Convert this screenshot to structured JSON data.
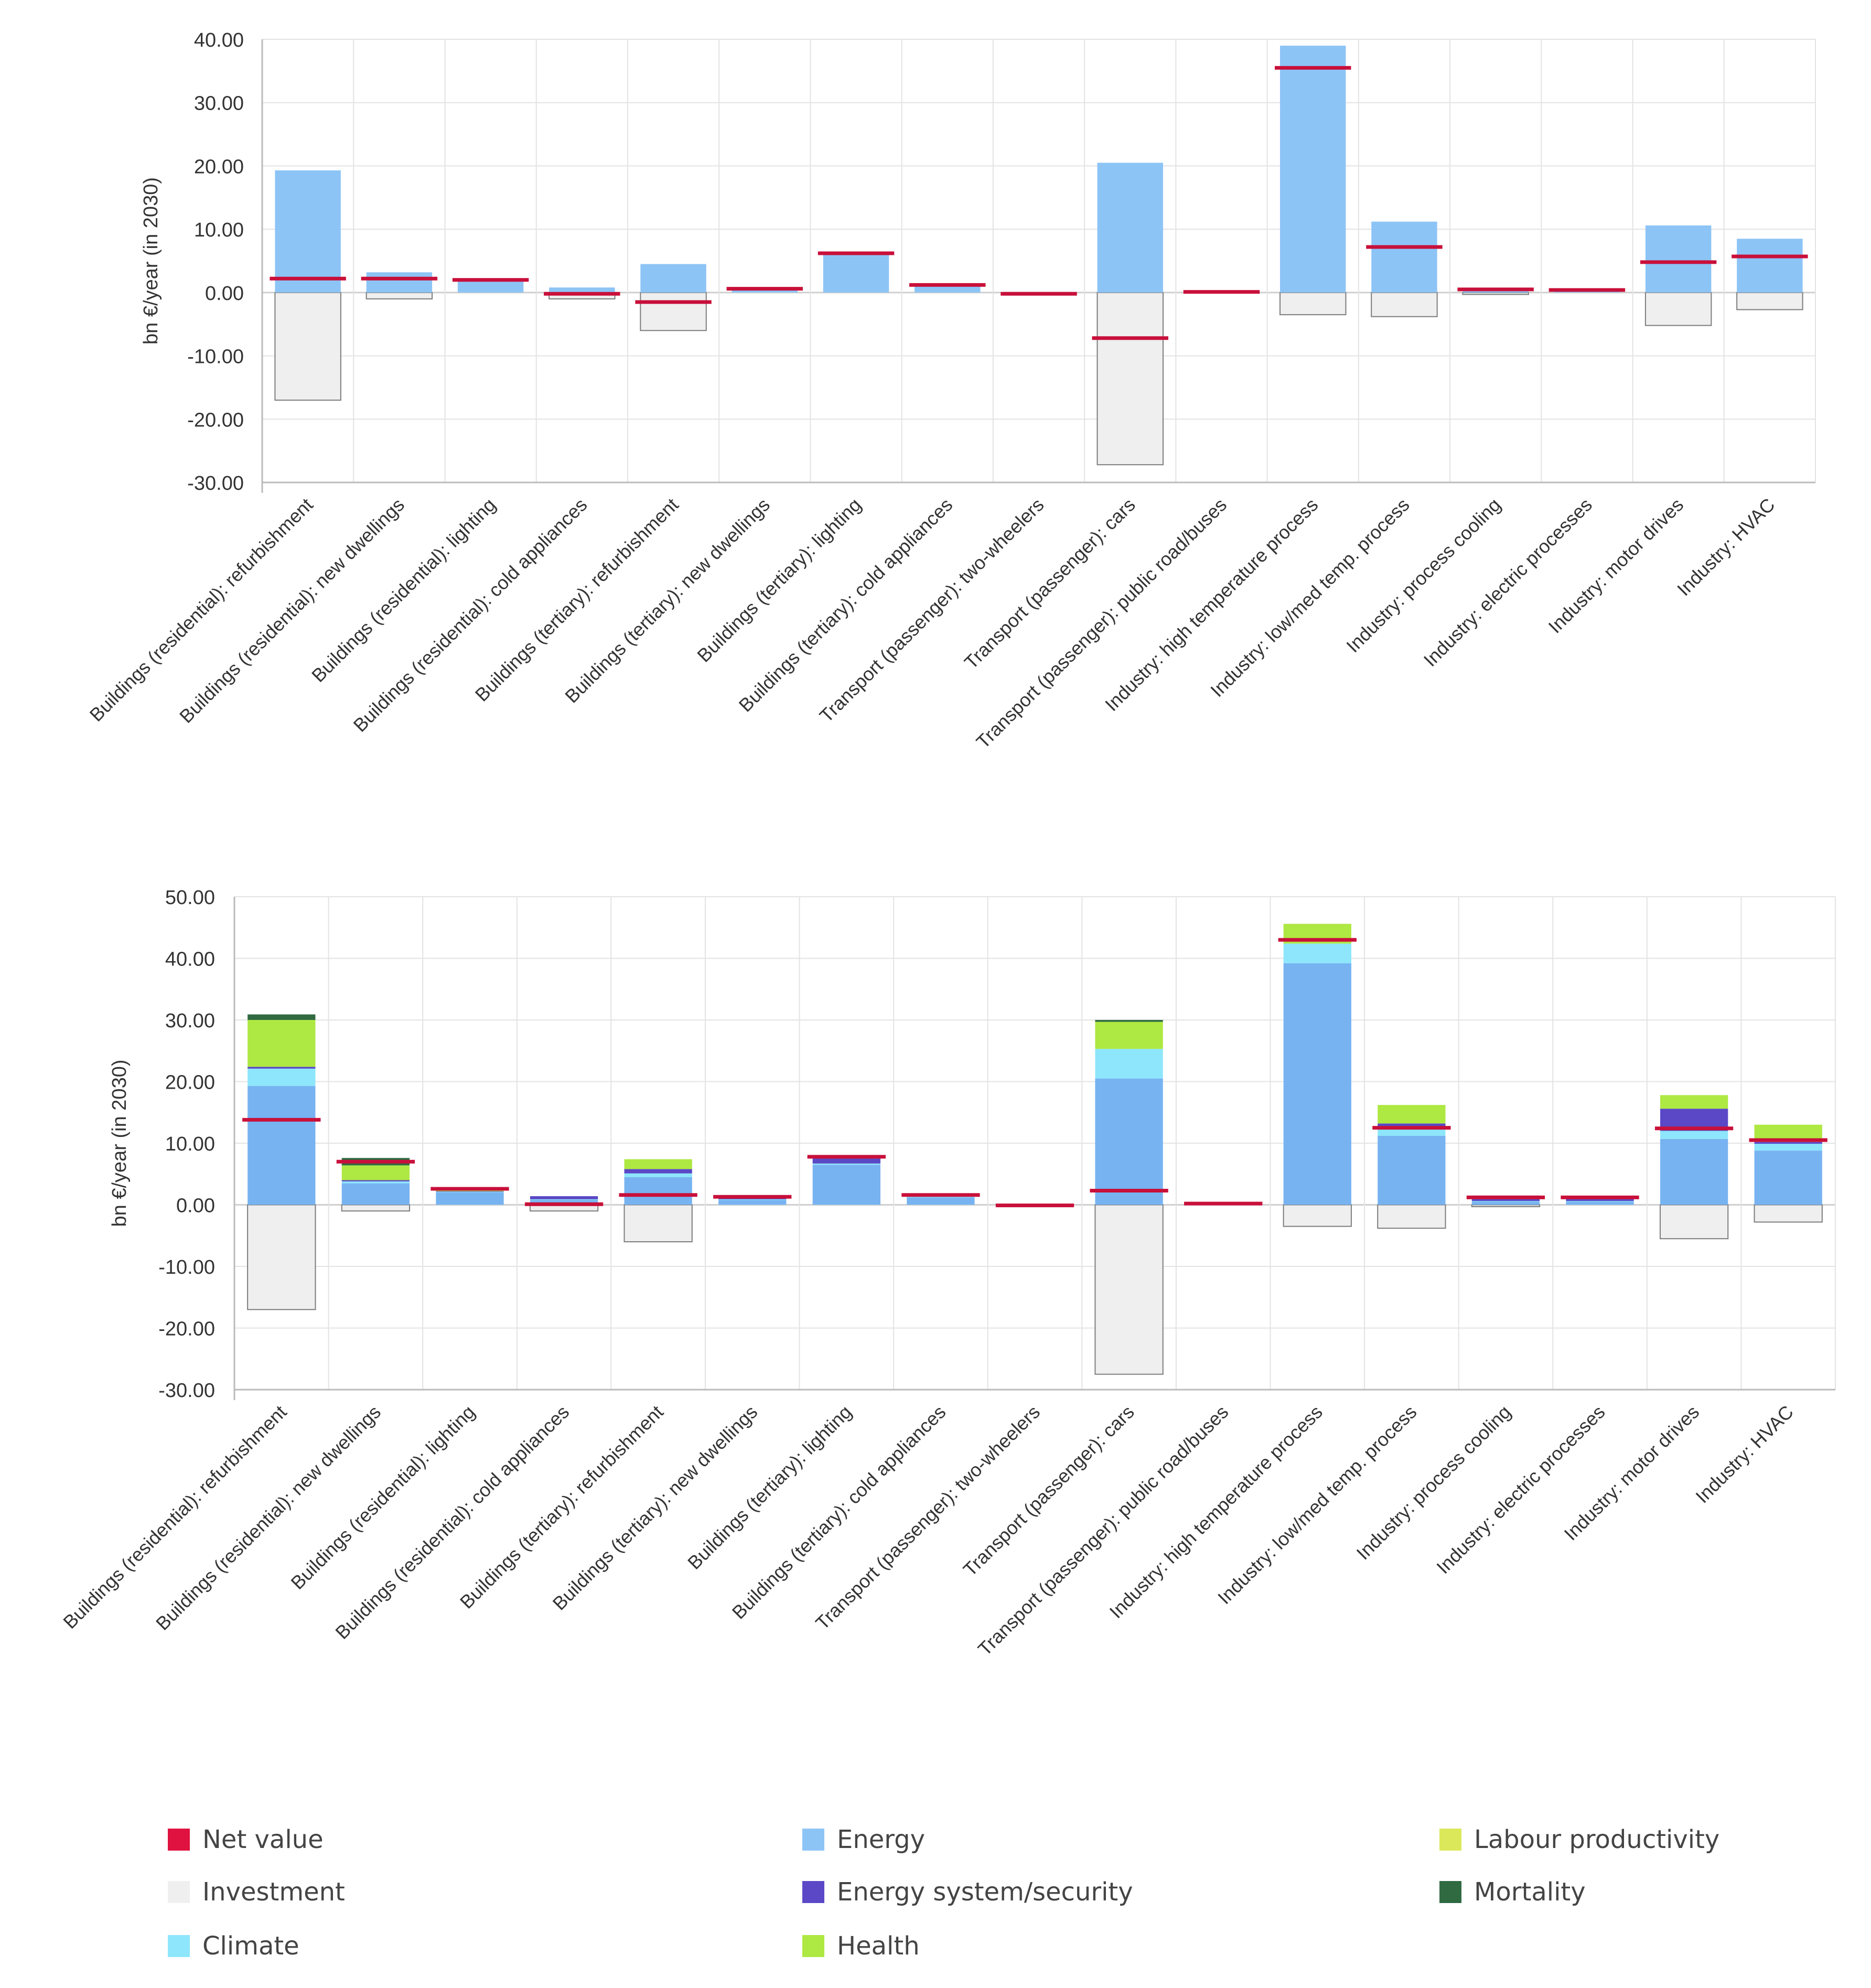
{
  "chart_data": [
    {
      "type": "bar",
      "stacked": true,
      "ylabel": "bn €/year (in 2030)",
      "ylim": [
        -30,
        40
      ],
      "yticks": [
        "40.00",
        "30.00",
        "20.00",
        "10.00",
        "0.00",
        "-10.00",
        "-20.00",
        "-30.00"
      ],
      "ytick_values": [
        40,
        30,
        20,
        10,
        0,
        -10,
        -20,
        -30
      ],
      "categories": [
        "Buildings (residential): refurbishment",
        "Buildings (residential): new dwellings",
        "Buildings (residential): lighting",
        "Buildings (residential): cold appliances",
        "Buildings (tertiary): refurbishment",
        "Buildings (tertiary): new dwellings",
        "Buildings (tertiary): lighting",
        "Buildings (tertiary): cold appliances",
        "Transport (passenger): two-wheelers",
        "Transport (passenger): cars",
        "Transport (passenger): public road/buses",
        "Industry: high temperature process",
        "Industry: low/med temp. process",
        "Industry: process cooling",
        "Industry: electric processes",
        "Industry: motor drives",
        "Industry: HVAC"
      ],
      "series": [
        {
          "name": "Investment",
          "values": [
            -17.0,
            -1.0,
            0,
            -1.0,
            -6.0,
            0,
            0,
            0,
            -0.3,
            -27.2,
            0,
            -3.5,
            -3.8,
            -0.3,
            0,
            -5.2,
            -2.7
          ]
        },
        {
          "name": "Energy",
          "values": [
            19.3,
            3.2,
            2.0,
            0.8,
            4.5,
            0.6,
            6.0,
            1.0,
            0,
            20.5,
            0.1,
            39.0,
            11.2,
            0.4,
            0.4,
            10.6,
            8.5
          ]
        }
      ],
      "net_value": [
        2.2,
        2.2,
        2.0,
        -0.2,
        -1.5,
        0.6,
        6.2,
        1.2,
        -0.2,
        -7.2,
        0.1,
        35.5,
        7.2,
        0.5,
        0.4,
        4.8,
        5.7
      ]
    },
    {
      "type": "bar",
      "stacked": true,
      "ylabel": "bn €/year (in 2030)",
      "ylim": [
        -30,
        50
      ],
      "yticks": [
        "50.00",
        "40.00",
        "30.00",
        "20.00",
        "10.00",
        "0.00",
        "-10.00",
        "-20.00",
        "-30.00"
      ],
      "ytick_values": [
        50,
        40,
        30,
        20,
        10,
        0,
        -10,
        -20,
        -30
      ],
      "categories": [
        "Buildings (residential): refurbishment",
        "Buildings (residential): new dwellings",
        "Buildings (residential): lighting",
        "Buildings (residential): cold appliances",
        "Buildings (tertiary): refurbishment",
        "Buildings (tertiary): new dwellings",
        "Buildings (tertiary): lighting",
        "Buildings (tertiary): cold appliances",
        "Transport (passenger): two-wheelers",
        "Transport (passenger): cars",
        "Transport (passenger): public road/buses",
        "Industry: high temperature process",
        "Industry: low/med temp. process",
        "Industry: process cooling",
        "Industry: electric processes",
        "Industry: motor drives",
        "Industry: HVAC"
      ],
      "series": [
        {
          "name": "Investment",
          "values": [
            -17.0,
            -1.0,
            0,
            -1.0,
            -6.0,
            0,
            0,
            0,
            -0.3,
            -27.5,
            0,
            -3.5,
            -3.8,
            -0.3,
            0,
            -5.5,
            -2.8
          ]
        },
        {
          "name": "Energy",
          "values": [
            19.3,
            3.5,
            2.0,
            0.8,
            4.5,
            0.8,
            6.5,
            1.2,
            0,
            20.5,
            0.2,
            39.2,
            11.2,
            0.5,
            0.5,
            10.7,
            8.8
          ]
        },
        {
          "name": "Climate",
          "values": [
            2.8,
            0.3,
            0.1,
            0.1,
            0.6,
            0.1,
            0.2,
            0.1,
            0,
            4.8,
            0,
            3.2,
            1.5,
            0.1,
            0.1,
            1.3,
            1.1
          ]
        },
        {
          "name": "Energy system/security",
          "values": [
            0.3,
            0.2,
            0.1,
            0.5,
            0.7,
            0.2,
            1.1,
            0.3,
            0,
            0,
            0,
            0,
            0.5,
            0.9,
            0.8,
            3.6,
            0.3
          ]
        },
        {
          "name": "Labour productivity",
          "values": [
            0,
            0,
            0,
            0,
            0,
            0,
            0,
            0,
            0,
            0,
            0,
            0,
            0,
            0,
            0,
            0,
            0
          ]
        },
        {
          "name": "Health",
          "values": [
            7.6,
            2.4,
            0.1,
            0,
            1.6,
            0,
            0,
            0,
            0,
            4.4,
            0.1,
            3.2,
            3.0,
            0,
            0,
            2.2,
            2.8
          ]
        },
        {
          "name": "Mortality",
          "values": [
            0.9,
            1.2,
            0,
            0,
            0,
            0,
            0,
            0,
            0,
            0.3,
            0,
            0,
            0,
            0,
            0,
            0,
            0
          ]
        }
      ],
      "net_value": [
        13.8,
        7.0,
        2.6,
        0.1,
        1.6,
        1.3,
        7.8,
        1.6,
        -0.1,
        2.3,
        0.2,
        43.0,
        12.5,
        1.2,
        1.2,
        12.4,
        10.5
      ]
    }
  ],
  "legend": [
    {
      "name": "Net value",
      "color": "#e0123f"
    },
    {
      "name": "Energy",
      "color": "#8dc4f6"
    },
    {
      "name": "Labour productivity",
      "color": "#dbe85a"
    },
    {
      "name": "Investment",
      "color": "#efefef"
    },
    {
      "name": "Energy system/security",
      "color": "#5a48c6"
    },
    {
      "name": "Mortality",
      "color": "#2f6a41"
    },
    {
      "name": "Climate",
      "color": "#8de6fb"
    },
    {
      "name": "Health",
      "color": "#aee842"
    }
  ],
  "colors": {
    "Investment": "#efefef",
    "Energy": "#8dc4f6",
    "Energy_dark": "#77b3f1",
    "Climate": "#8de6fb",
    "Energy system/security": "#5a48c6",
    "Labour productivity": "#dbe85a",
    "Health": "#aee842",
    "Mortality": "#2f6a41",
    "Net value": "#c8103a",
    "grid": "#e3e3e3",
    "axis_text": "#333333"
  }
}
